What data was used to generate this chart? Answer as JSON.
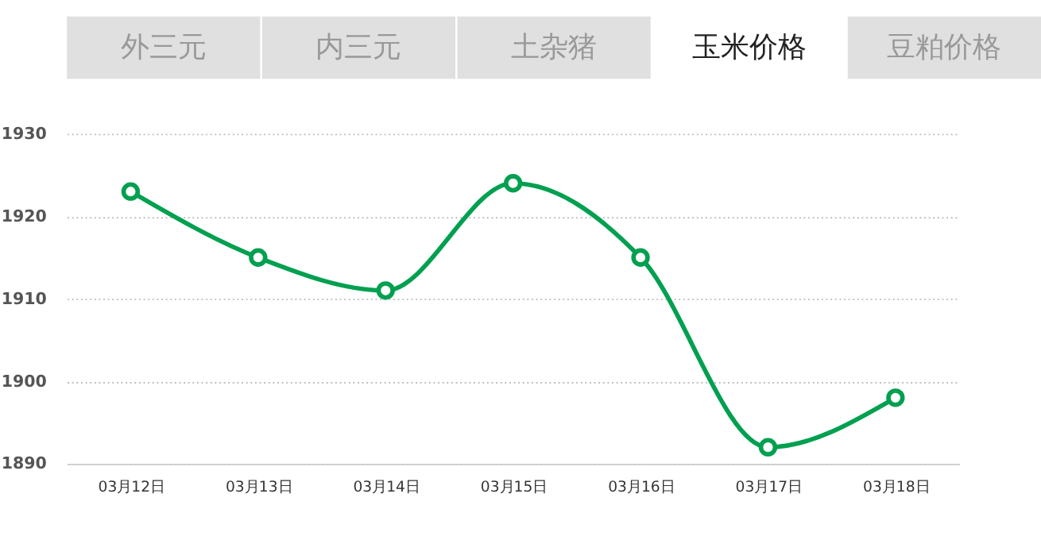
{
  "chart_data": {
    "type": "line",
    "title": "玉米价格",
    "annotations": [
      "外三元",
      "内三元",
      "土杂猪",
      "豆粕价格"
    ],
    "categories": [
      "03月12日",
      "03月13日",
      "03月14日",
      "03月15日",
      "03月16日",
      "03月17日",
      "03月18日"
    ],
    "series": [
      {
        "color": "#00a050",
        "values": [
          1923,
          1915,
          1911,
          1924,
          1915,
          1892,
          1898
        ]
      }
    ],
    "ylim": [
      1890,
      1930
    ],
    "yticks": [
      1890,
      1900,
      1910,
      1920,
      1930
    ],
    "grid": "y",
    "marker": "circle",
    "line_style": "solid",
    "legend": false
  }
}
